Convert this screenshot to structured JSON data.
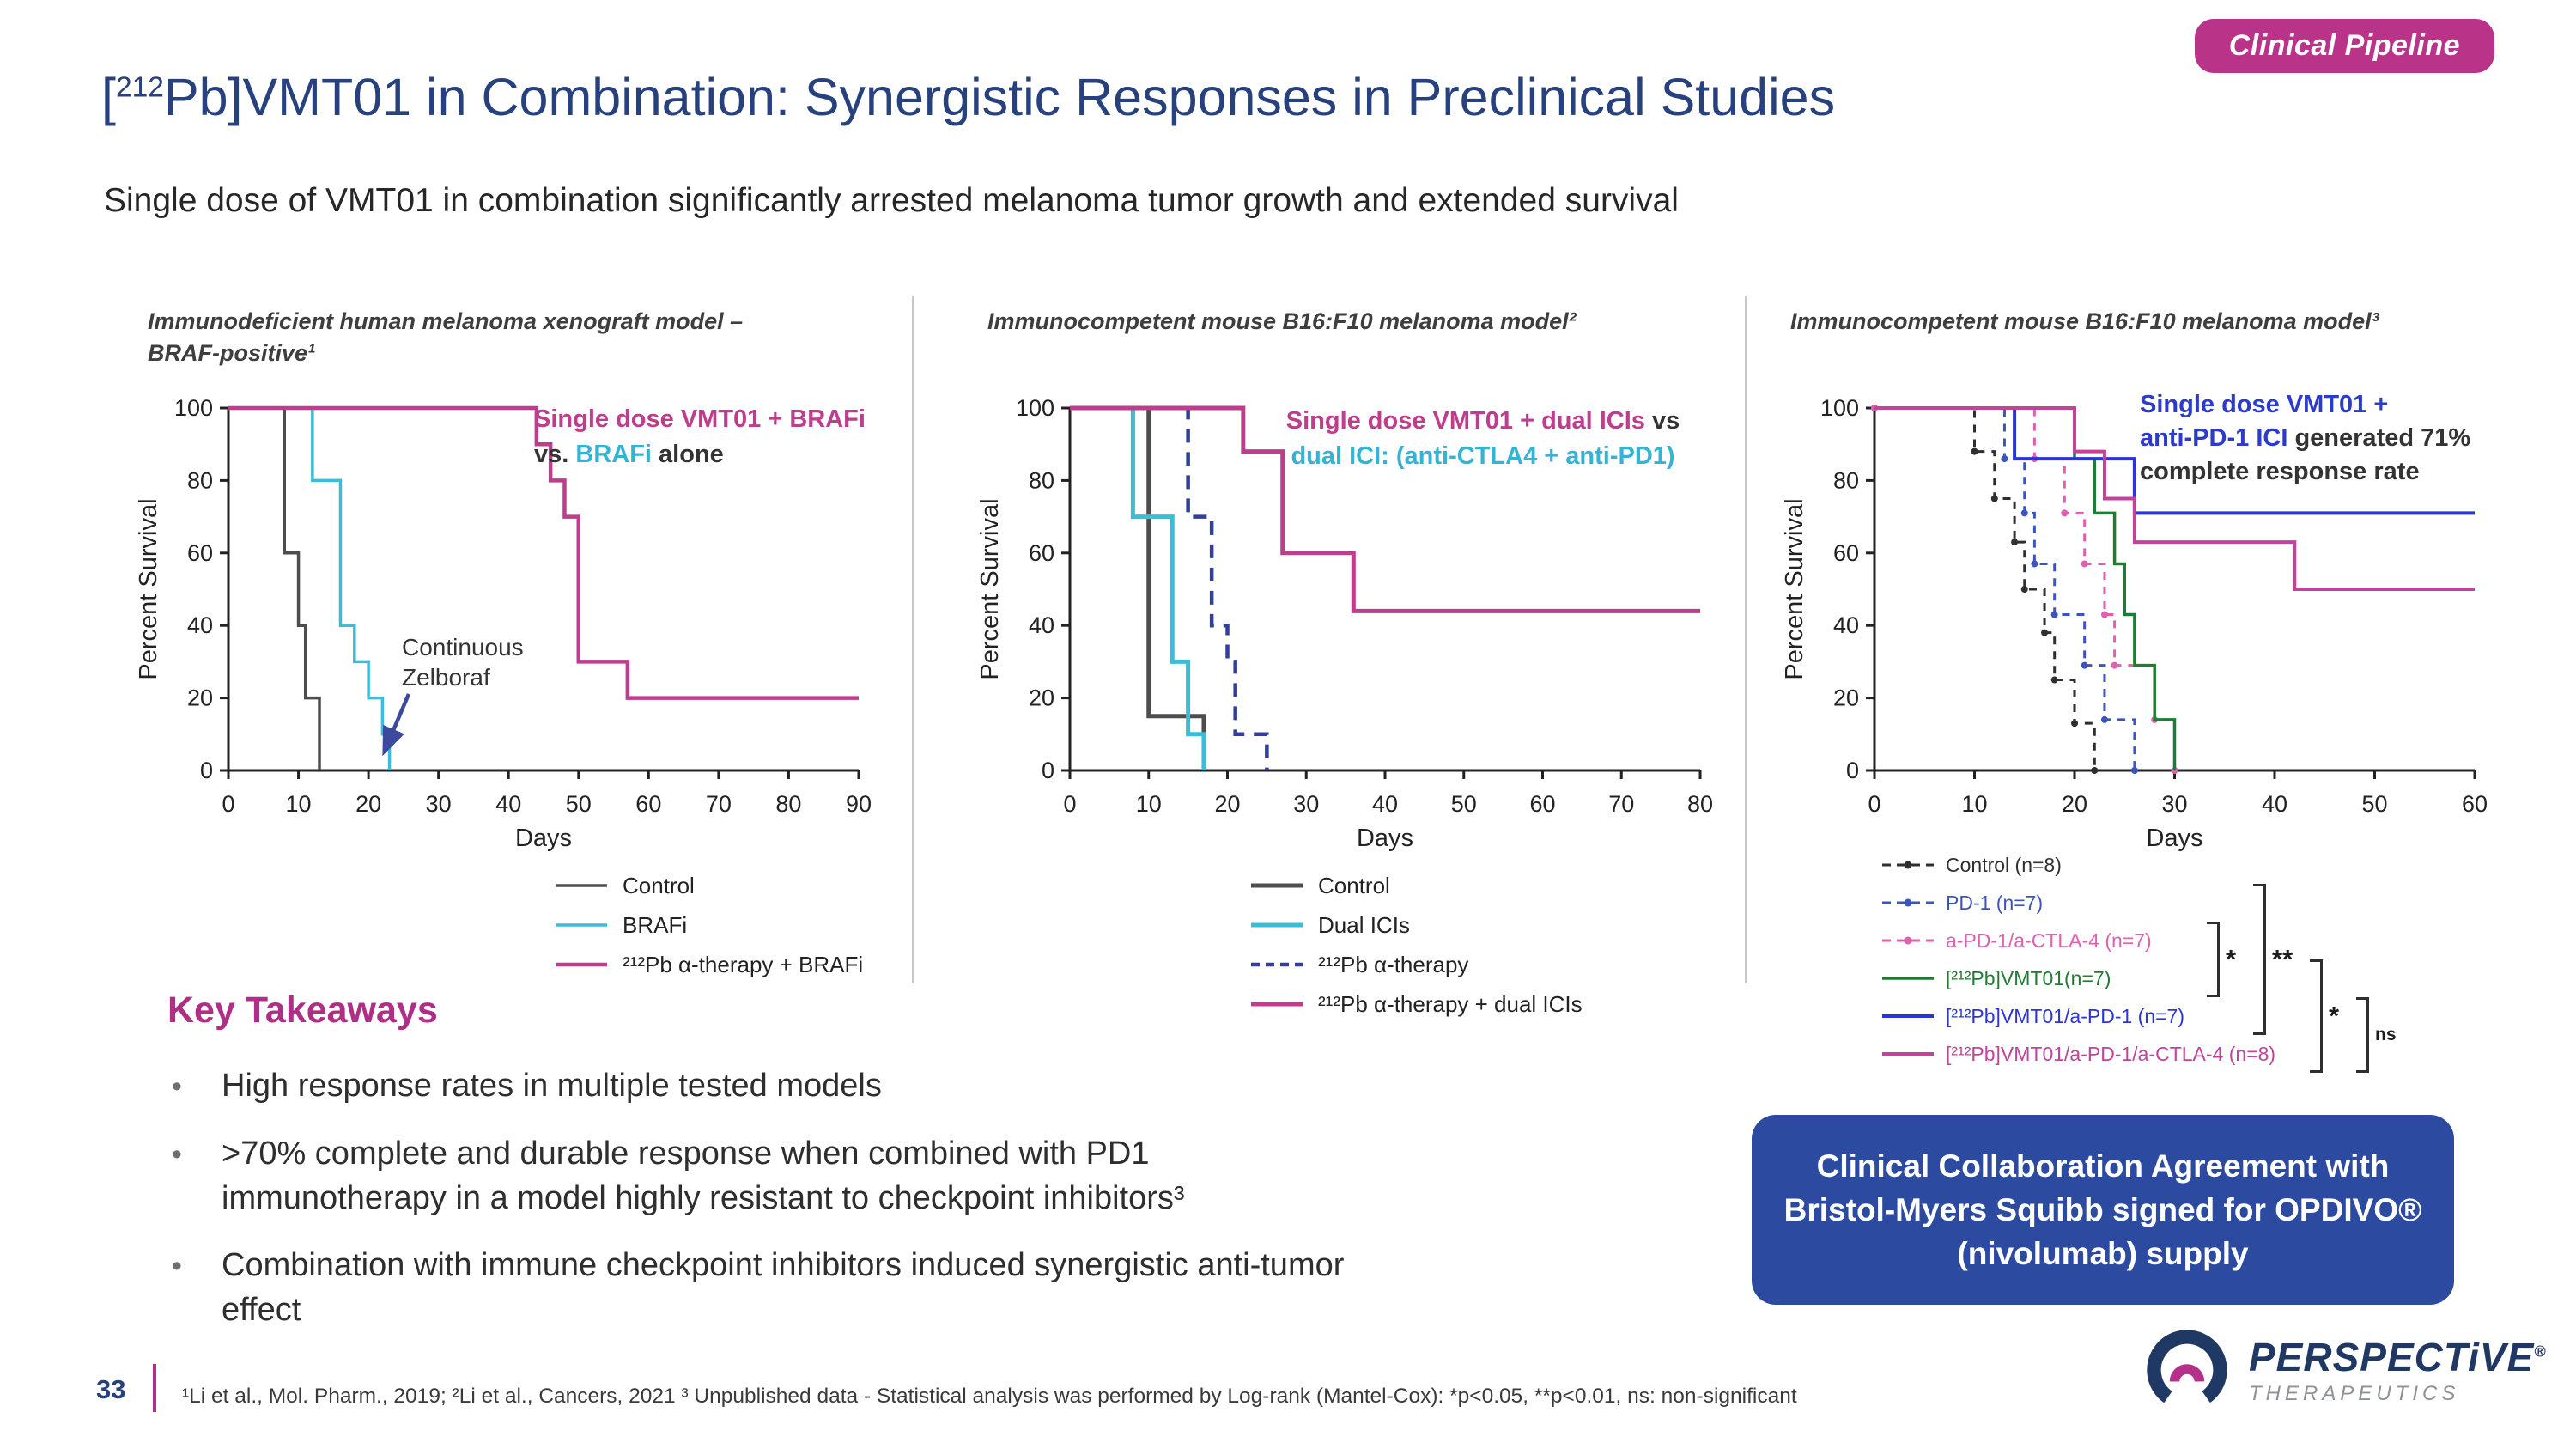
{
  "badge": {
    "label": "Clinical Pipeline"
  },
  "header": {
    "title_pre": "[",
    "title_sup": "212",
    "title_post": "Pb]VMT01 in Combination: Synergistic Responses in Preclinical Studies",
    "subtitle": "Single dose of VMT01 in combination significantly arrested melanoma tumor growth and extended survival"
  },
  "colors": {
    "badge_magenta": "#b93489",
    "title_blue": "#26417e",
    "accent_magenta": "#b02f86",
    "collab_blue": "#2c4aa0",
    "cyan": "#3bbcd9",
    "navy_dashed": "#323f99",
    "series_magenta": "#bf3d8d"
  },
  "panels": [
    {
      "annotation": {
        "line1": "Single dose VMT01 + BRAFi",
        "line2_pre": "vs. ",
        "line2_cyan": "BRAFi",
        "line2_post": " alone"
      },
      "note": "Continuous\nZelboraf"
    },
    {
      "annotation": {
        "line1_magenta": "Single dose VMT01 + dual ICIs",
        "line1_dark": " vs",
        "line2_cyan": "dual ICI: (anti-CTLA4 + anti-PD1)"
      }
    },
    {
      "annotation": {
        "line1_blue": "Single dose VMT01 +",
        "line2_blue": "anti-PD-1 ICI",
        "line2_dark": " generated 71%",
        "line3_dark": "complete response rate"
      },
      "significance": [
        "*",
        "**",
        "*",
        "ns"
      ]
    }
  ],
  "chart_data": [
    {
      "type": "line",
      "km": true,
      "title": "Immunodeficient human melanoma xenograft model –\nBRAF-positive¹",
      "xlabel": "Days",
      "ylabel": "Percent Survival",
      "xlim": [
        0,
        90
      ],
      "ylim": [
        0,
        100
      ],
      "xticks": [
        0,
        10,
        20,
        30,
        40,
        50,
        60,
        70,
        80,
        90
      ],
      "yticks": [
        0,
        20,
        40,
        60,
        80,
        100
      ],
      "legend_position": "below",
      "series": [
        {
          "name": "Control",
          "color": "#4d4d4d",
          "width": 3.5,
          "dash": null,
          "markers": false,
          "points": [
            [
              0,
              100
            ],
            [
              8,
              60
            ],
            [
              10,
              40
            ],
            [
              11,
              20
            ],
            [
              13,
              0
            ]
          ]
        },
        {
          "name": "BRAFi",
          "color": "#3bbcd9",
          "width": 3.5,
          "dash": null,
          "markers": false,
          "points": [
            [
              0,
              100
            ],
            [
              12,
              80
            ],
            [
              16,
              40
            ],
            [
              18,
              30
            ],
            [
              20,
              20
            ],
            [
              22,
              10
            ],
            [
              23,
              0
            ]
          ]
        },
        {
          "name": "²¹²Pb α-therapy + BRAFi",
          "color": "#bf3d8d",
          "width": 4.5,
          "dash": null,
          "markers": false,
          "points": [
            [
              0,
              100
            ],
            [
              44,
              90
            ],
            [
              46,
              80
            ],
            [
              48,
              70
            ],
            [
              50,
              30
            ],
            [
              57,
              20
            ],
            [
              90,
              20
            ]
          ]
        }
      ]
    },
    {
      "type": "line",
      "km": true,
      "title": "Immunocompetent mouse B16:F10 melanoma model²",
      "xlabel": "Days",
      "ylabel": "Percent Survival",
      "xlim": [
        0,
        80
      ],
      "ylim": [
        0,
        100
      ],
      "xticks": [
        0,
        10,
        20,
        30,
        40,
        50,
        60,
        70,
        80
      ],
      "yticks": [
        0,
        20,
        40,
        60,
        80,
        100
      ],
      "legend_position": "below",
      "series": [
        {
          "name": "Control",
          "color": "#4d4d4d",
          "width": 5,
          "dash": null,
          "markers": false,
          "points": [
            [
              0,
              100
            ],
            [
              10,
              15
            ],
            [
              17,
              0
            ]
          ]
        },
        {
          "name": "Dual ICIs",
          "color": "#3bbcd9",
          "width": 5,
          "dash": null,
          "markers": false,
          "points": [
            [
              0,
              100
            ],
            [
              8,
              70
            ],
            [
              13,
              30
            ],
            [
              15,
              10
            ],
            [
              17,
              0
            ]
          ]
        },
        {
          "name": "²¹²Pb α-therapy",
          "color": "#323f99",
          "width": 4.5,
          "dash": "16,11",
          "markers": false,
          "points": [
            [
              0,
              100
            ],
            [
              15,
              70
            ],
            [
              18,
              40
            ],
            [
              20,
              30
            ],
            [
              21,
              10
            ],
            [
              25,
              0
            ]
          ]
        },
        {
          "name": "²¹²Pb α-therapy + dual ICIs",
          "color": "#bf3d8d",
          "width": 5,
          "dash": null,
          "markers": false,
          "points": [
            [
              0,
              100
            ],
            [
              22,
              88
            ],
            [
              27,
              60
            ],
            [
              36,
              44
            ],
            [
              80,
              44
            ]
          ]
        }
      ]
    },
    {
      "type": "line",
      "km": true,
      "title": "Immunocompetent mouse B16:F10 melanoma model³",
      "xlabel": "Days",
      "ylabel": "Percent Survival",
      "xlim": [
        0,
        60
      ],
      "ylim": [
        0,
        100
      ],
      "xticks": [
        0,
        10,
        20,
        30,
        40,
        50,
        60
      ],
      "yticks": [
        0,
        20,
        40,
        60,
        80,
        100
      ],
      "legend_position": "below",
      "legend_colored": true,
      "series": [
        {
          "name": "Control (n=8)",
          "color": "#2f2f2f",
          "width": 3,
          "dash": "9,8",
          "markers": true,
          "points": [
            [
              0,
              100
            ],
            [
              10,
              88
            ],
            [
              12,
              75
            ],
            [
              14,
              63
            ],
            [
              15,
              50
            ],
            [
              17,
              38
            ],
            [
              18,
              25
            ],
            [
              20,
              13
            ],
            [
              22,
              0
            ]
          ]
        },
        {
          "name": "PD-1 (n=7)",
          "color": "#3c55bd",
          "width": 3,
          "dash": "9,8",
          "markers": true,
          "points": [
            [
              0,
              100
            ],
            [
              13,
              86
            ],
            [
              15,
              71
            ],
            [
              16,
              57
            ],
            [
              18,
              43
            ],
            [
              21,
              29
            ],
            [
              23,
              14
            ],
            [
              26,
              0
            ]
          ]
        },
        {
          "name": "a-PD-1/a-CTLA-4 (n=7)",
          "color": "#e060b0",
          "width": 3,
          "dash": "9,8",
          "markers": true,
          "points": [
            [
              0,
              100
            ],
            [
              16,
              86
            ],
            [
              19,
              71
            ],
            [
              21,
              57
            ],
            [
              23,
              43
            ],
            [
              24,
              29
            ],
            [
              28,
              14
            ],
            [
              30,
              0
            ]
          ]
        },
        {
          "name": "[²¹²Pb]VMT01(n=7)",
          "color": "#1f7d33",
          "width": 3.5,
          "dash": null,
          "markers": false,
          "points": [
            [
              0,
              100
            ],
            [
              20,
              86
            ],
            [
              22,
              71
            ],
            [
              24,
              57
            ],
            [
              25,
              43
            ],
            [
              26,
              29
            ],
            [
              28,
              14
            ],
            [
              30,
              0
            ]
          ]
        },
        {
          "name": "[²¹²Pb]VMT01/a-PD-1 (n=7)",
          "color": "#2b35d6",
          "width": 4,
          "dash": null,
          "markers": false,
          "points": [
            [
              0,
              100
            ],
            [
              14,
              86
            ],
            [
              26,
              71
            ],
            [
              60,
              71
            ]
          ]
        },
        {
          "name": "[²¹²Pb]VMT01/a-PD-1/a-CTLA-4 (n=8)",
          "color": "#c2439a",
          "width": 4,
          "dash": null,
          "markers": false,
          "points": [
            [
              0,
              100
            ],
            [
              20,
              88
            ],
            [
              23,
              75
            ],
            [
              26,
              63
            ],
            [
              42,
              50
            ],
            [
              60,
              50
            ]
          ]
        }
      ]
    }
  ],
  "takeaways": {
    "heading": "Key Takeaways",
    "items": [
      "High response rates in multiple tested models",
      ">70% complete and durable response when combined with PD1\nimmunotherapy in a model highly resistant to checkpoint inhibitors³",
      "Combination with immune checkpoint inhibitors induced synergistic anti-tumor\neffect"
    ]
  },
  "collab_box": {
    "text": "Clinical Collaboration Agreement with\nBristol-Myers Squibb signed for OPDIVO®\n(nivolumab) supply"
  },
  "footer": {
    "page": "33",
    "note": "¹Li et al., Mol. Pharm., 2019; ²Li et al., Cancers, 2021 ³ Unpublished data - Statistical analysis was performed by Log-rank (Mantel-Cox): *p<0.05, **p<0.01, ns: non-significant"
  },
  "logo": {
    "brand": "PERSPECTiVE",
    "reg": "®",
    "sub": "THERAPEUTICS"
  }
}
